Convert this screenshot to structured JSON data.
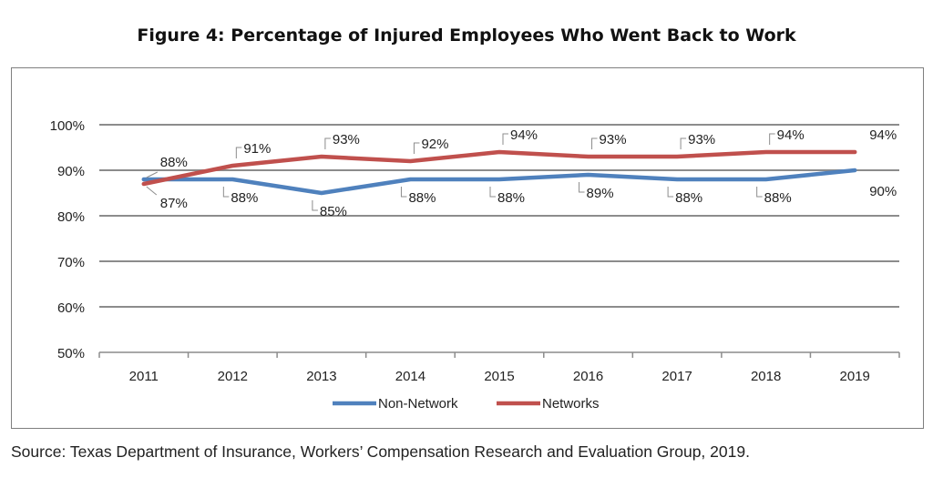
{
  "title": "Figure 4: Percentage of Injured Employees Who Went Back to Work",
  "source": "Source: Texas Department of Insurance, Workers’ Compensation Research and Evaluation Group, 2019.",
  "chart_data": {
    "type": "line",
    "title": "Figure 4: Percentage of Injured Employees Who Went Back to Work",
    "xlabel": "",
    "ylabel": "",
    "categories": [
      "2011",
      "2012",
      "2013",
      "2014",
      "2015",
      "2016",
      "2017",
      "2018",
      "2019"
    ],
    "ylim": [
      50,
      100
    ],
    "yticks": [
      50,
      60,
      70,
      80,
      90,
      100
    ],
    "ytick_labels": [
      "50%",
      "60%",
      "70%",
      "80%",
      "90%",
      "100%"
    ],
    "grid": true,
    "legend_position": "bottom",
    "series": [
      {
        "name": "Non-Network",
        "color": "#4f81bd",
        "values": [
          88,
          88,
          85,
          88,
          88,
          89,
          88,
          88,
          90
        ],
        "labels": [
          "88%",
          "88%",
          "85%",
          "88%",
          "88%",
          "89%",
          "88%",
          "88%",
          "90%"
        ]
      },
      {
        "name": "Networks",
        "color": "#c0504d",
        "values": [
          87,
          91,
          93,
          92,
          94,
          93,
          93,
          94,
          94
        ],
        "labels": [
          "87%",
          "91%",
          "93%",
          "92%",
          "94%",
          "93%",
          "93%",
          "94%",
          "94%"
        ]
      }
    ]
  }
}
